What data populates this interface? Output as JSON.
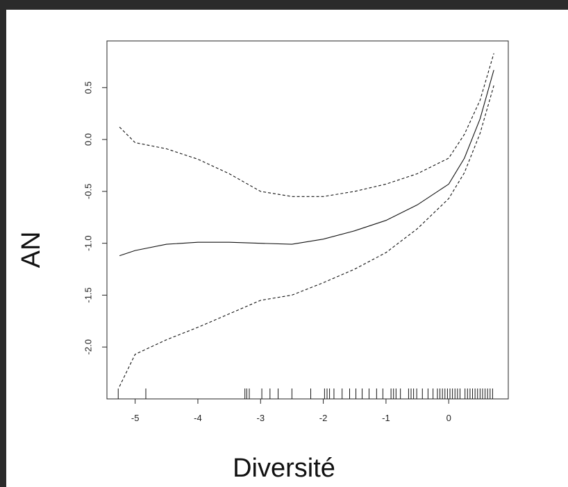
{
  "chart_data": {
    "type": "line",
    "xlabel": "Diversité",
    "ylabel": "AN",
    "xlim": [
      -5.45,
      0.95
    ],
    "ylim": [
      -2.5,
      0.95
    ],
    "xticks": [
      -5,
      -4,
      -3,
      -2,
      -1,
      0
    ],
    "yticks": [
      -2.0,
      -1.5,
      -1.0,
      -0.5,
      0.0,
      0.5
    ],
    "xtick_labels": [
      "-5",
      "-4",
      "-3",
      "-2",
      "-1",
      "0"
    ],
    "ytick_labels": [
      "-2.0",
      "-1.5",
      "-1.0",
      "-0.5",
      "0.0",
      "0.5"
    ],
    "grid": false,
    "series": [
      {
        "style": "solid",
        "x": [
          -5.25,
          -5.0,
          -4.5,
          -4.0,
          -3.5,
          -3.0,
          -2.5,
          -2.0,
          -1.5,
          -1.0,
          -0.5,
          0.0,
          0.25,
          0.5,
          0.72
        ],
        "y": [
          -1.12,
          -1.07,
          -1.01,
          -0.99,
          -0.99,
          -1.0,
          -1.01,
          -0.96,
          -0.88,
          -0.78,
          -0.63,
          -0.43,
          -0.18,
          0.2,
          0.67
        ]
      },
      {
        "style": "dashed",
        "x": [
          -5.25,
          -5.0,
          -4.5,
          -4.0,
          -3.5,
          -3.0,
          -2.5,
          -2.0,
          -1.5,
          -1.0,
          -0.5,
          0.0,
          0.25,
          0.5,
          0.72
        ],
        "y": [
          0.12,
          -0.03,
          -0.09,
          -0.19,
          -0.33,
          -0.5,
          -0.55,
          -0.55,
          -0.5,
          -0.43,
          -0.33,
          -0.18,
          0.05,
          0.38,
          0.83
        ]
      },
      {
        "style": "dashed",
        "x": [
          -5.25,
          -5.0,
          -4.5,
          -4.0,
          -3.5,
          -3.0,
          -2.5,
          -2.0,
          -1.5,
          -1.0,
          -0.5,
          0.0,
          0.25,
          0.5,
          0.72
        ],
        "y": [
          -2.38,
          -2.07,
          -1.93,
          -1.81,
          -1.68,
          -1.55,
          -1.5,
          -1.38,
          -1.25,
          -1.09,
          -0.86,
          -0.57,
          -0.32,
          0.06,
          0.52
        ]
      }
    ],
    "rug": [
      -5.27,
      -4.83,
      -3.25,
      -3.22,
      -3.18,
      -2.98,
      -2.85,
      -2.72,
      -2.5,
      -2.2,
      -1.98,
      -1.94,
      -1.9,
      -1.83,
      -1.7,
      -1.58,
      -1.48,
      -1.38,
      -1.27,
      -1.15,
      -1.05,
      -0.92,
      -0.88,
      -0.84,
      -0.77,
      -0.64,
      -0.6,
      -0.56,
      -0.51,
      -0.42,
      -0.33,
      -0.25,
      -0.18,
      -0.14,
      -0.1,
      -0.06,
      -0.02,
      0.02,
      0.06,
      0.1,
      0.14,
      0.18,
      0.26,
      0.3,
      0.34,
      0.38,
      0.42,
      0.46,
      0.5,
      0.54,
      0.58,
      0.62,
      0.66,
      0.7
    ]
  }
}
